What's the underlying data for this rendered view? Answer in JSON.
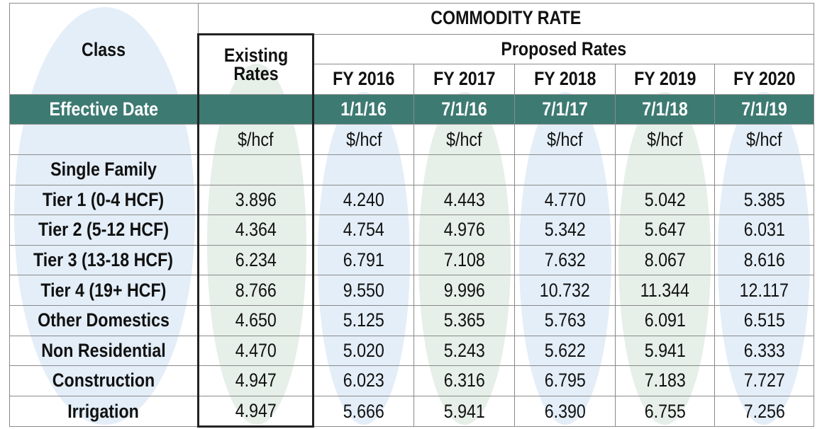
{
  "header": {
    "class_label": "Class",
    "commodity_rate": "COMMODITY RATE",
    "existing_rates": "Existing Rates",
    "proposed_rates": "Proposed Rates",
    "fiscal_years": [
      "FY 2016",
      "FY 2017",
      "FY 2018",
      "FY 2019",
      "FY 2020"
    ]
  },
  "effective_date": {
    "label": "Effective Date",
    "existing": "",
    "dates": [
      "1/1/16",
      "7/1/16",
      "7/1/17",
      "7/1/18",
      "7/1/19"
    ]
  },
  "units": {
    "existing": "$/hcf",
    "proposed": [
      "$/hcf",
      "$/hcf",
      "$/hcf",
      "$/hcf",
      "$/hcf"
    ]
  },
  "section_label": "Single Family",
  "rows": [
    {
      "class": "Tier 1 (0-4 HCF)",
      "existing": "3.896",
      "proposed": [
        "4.240",
        "4.443",
        "4.770",
        "5.042",
        "5.385"
      ]
    },
    {
      "class": "Tier 2 (5-12 HCF)",
      "existing": "4.364",
      "proposed": [
        "4.754",
        "4.976",
        "5.342",
        "5.647",
        "6.031"
      ]
    },
    {
      "class": "Tier 3 (13-18 HCF)",
      "existing": "6.234",
      "proposed": [
        "6.791",
        "7.108",
        "7.632",
        "8.067",
        "8.616"
      ]
    },
    {
      "class": "Tier 4 (19+ HCF)",
      "existing": "8.766",
      "proposed": [
        "9.550",
        "9.996",
        "10.732",
        "11.344",
        "12.117"
      ]
    },
    {
      "class": "Other Domestics",
      "existing": "4.650",
      "proposed": [
        "5.125",
        "5.365",
        "5.763",
        "6.091",
        "6.515"
      ]
    },
    {
      "class": "Non Residential",
      "existing": "4.470",
      "proposed": [
        "5.020",
        "5.243",
        "5.622",
        "5.941",
        "6.333"
      ]
    },
    {
      "class": "Construction",
      "existing": "4.947",
      "proposed": [
        "6.023",
        "6.316",
        "6.795",
        "7.183",
        "7.727"
      ]
    },
    {
      "class": "Irrigation",
      "existing": "4.947",
      "proposed": [
        "5.666",
        "5.941",
        "6.390",
        "6.755",
        "7.256"
      ]
    }
  ],
  "colors": {
    "effective_row_bg": "#3d7a72",
    "ellipse_blue": "#e4eef8",
    "ellipse_green": "#e6efe8"
  }
}
